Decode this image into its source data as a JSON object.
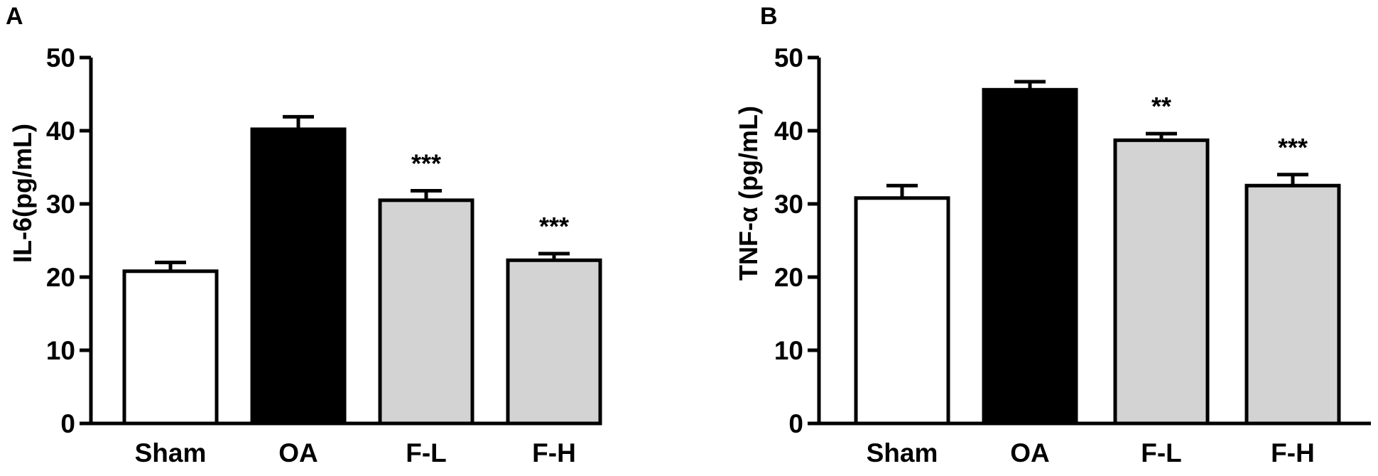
{
  "chart_data": [
    {
      "type": "bar",
      "panel_label": "A",
      "ylabel": "IL-6(pg/mL)",
      "categories": [
        "Sham",
        "OA",
        "F-L",
        "F-H"
      ],
      "values": [
        20.8,
        40.2,
        30.5,
        22.3
      ],
      "errors": [
        1.2,
        1.7,
        1.3,
        0.9
      ],
      "significance": [
        "",
        "",
        "***",
        "***"
      ],
      "colors": [
        "#ffffff",
        "#000000",
        "#d3d3d3",
        "#d3d3d3"
      ],
      "ylim": [
        0,
        50
      ],
      "yticks": [
        "0",
        "10",
        "20",
        "30",
        "40",
        "50"
      ],
      "grid": false
    },
    {
      "type": "bar",
      "panel_label": "B",
      "ylabel": "TNF-α (pg/mL)",
      "categories": [
        "Sham",
        "OA",
        "F-L",
        "F-H"
      ],
      "values": [
        30.8,
        45.6,
        38.7,
        32.5
      ],
      "errors": [
        1.7,
        1.1,
        0.9,
        1.5
      ],
      "significance": [
        "",
        "",
        "**",
        "***"
      ],
      "colors": [
        "#ffffff",
        "#000000",
        "#d3d3d3",
        "#d3d3d3"
      ],
      "ylim": [
        0,
        50
      ],
      "yticks": [
        "0",
        "10",
        "20",
        "30",
        "40",
        "50"
      ],
      "grid": false
    }
  ]
}
